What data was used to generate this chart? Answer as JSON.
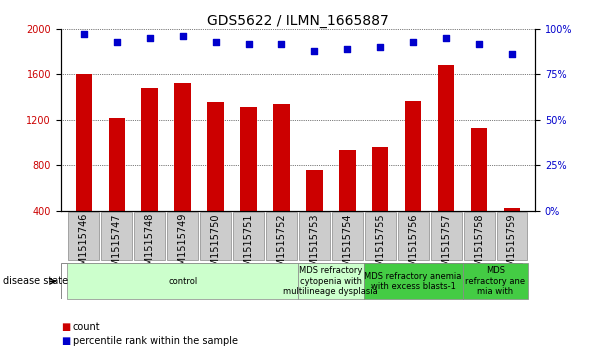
{
  "title": "GDS5622 / ILMN_1665887",
  "samples": [
    "GSM1515746",
    "GSM1515747",
    "GSM1515748",
    "GSM1515749",
    "GSM1515750",
    "GSM1515751",
    "GSM1515752",
    "GSM1515753",
    "GSM1515754",
    "GSM1515755",
    "GSM1515756",
    "GSM1515757",
    "GSM1515758",
    "GSM1515759"
  ],
  "counts": [
    1600,
    1215,
    1480,
    1520,
    1360,
    1310,
    1340,
    760,
    930,
    960,
    1370,
    1680,
    1130,
    420
  ],
  "percentiles": [
    97,
    93,
    95,
    96,
    93,
    92,
    92,
    88,
    89,
    90,
    93,
    95,
    92,
    86
  ],
  "disease_groups": [
    {
      "label": "control",
      "start": 0,
      "end": 7,
      "color": "#ccffcc"
    },
    {
      "label": "MDS refractory\ncytopenia with\nmultilineage dysplasia",
      "start": 7,
      "end": 9,
      "color": "#ccffcc"
    },
    {
      "label": "MDS refractory anemia\nwith excess blasts-1",
      "start": 9,
      "end": 12,
      "color": "#44cc44"
    },
    {
      "label": "MDS\nrefractory ane\nmia with",
      "start": 12,
      "end": 14,
      "color": "#44cc44"
    }
  ],
  "ylim_left": [
    400,
    2000
  ],
  "ylim_right": [
    0,
    100
  ],
  "yticks_left": [
    400,
    800,
    1200,
    1600,
    2000
  ],
  "yticks_right": [
    0,
    25,
    50,
    75,
    100
  ],
  "bar_color": "#cc0000",
  "dot_color": "#0000cc",
  "bar_width": 0.5,
  "background_color": "#ffffff",
  "grid_color": "#000000",
  "label_fontsize": 7,
  "title_fontsize": 10
}
